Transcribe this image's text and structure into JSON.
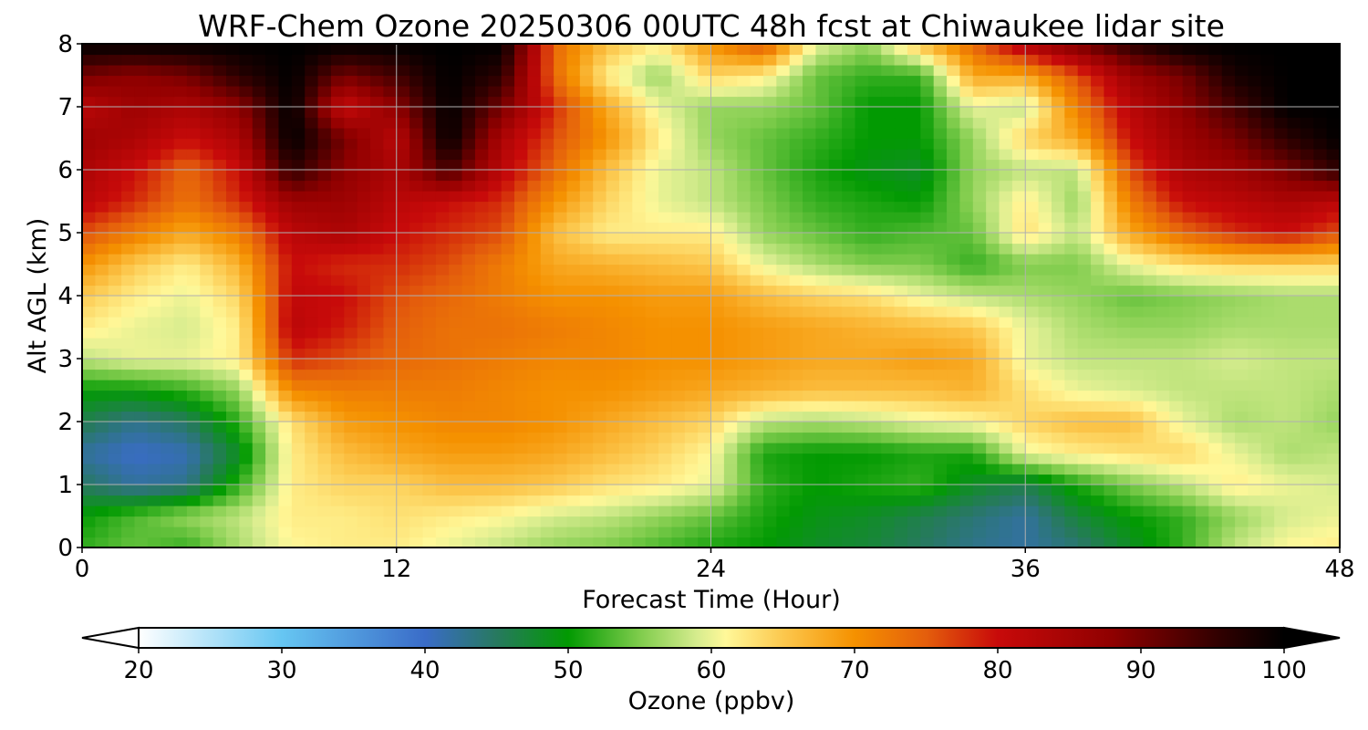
{
  "chart_data": {
    "type": "heatmap",
    "title": "WRF-Chem Ozone  20250306 00UTC 48h fcst at Chiwaukee lidar site",
    "xlabel": "Forecast Time (Hour)",
    "ylabel": "Alt AGL (km)",
    "xlim": [
      0,
      48
    ],
    "ylim": [
      0,
      8
    ],
    "x_ticks": [
      0,
      12,
      24,
      36,
      48
    ],
    "y_ticks": [
      0,
      1,
      2,
      3,
      4,
      5,
      6,
      7,
      8
    ],
    "grid": true,
    "x_hours": [
      0,
      2,
      4,
      6,
      8,
      10,
      12,
      14,
      16,
      18,
      20,
      22,
      24,
      26,
      28,
      30,
      32,
      34,
      36,
      38,
      40,
      42,
      44,
      46,
      48
    ],
    "y_km": [
      0,
      0.5,
      1,
      1.5,
      2,
      2.5,
      3,
      3.5,
      4,
      4.5,
      5,
      5.5,
      6,
      6.5,
      7,
      7.5,
      8
    ],
    "z_ppbv": [
      [
        52,
        54,
        52,
        57,
        61,
        62,
        62,
        60,
        58,
        56,
        55,
        53,
        51,
        50,
        48,
        47,
        45,
        43,
        42,
        44,
        48,
        52,
        58,
        61,
        62
      ],
      [
        50,
        53,
        56,
        58,
        62,
        62,
        63,
        62,
        61,
        59,
        58,
        56,
        54,
        51,
        49,
        48,
        46,
        44,
        42,
        47,
        50,
        52,
        56,
        59,
        60
      ],
      [
        45,
        42,
        43,
        52,
        62,
        64,
        64,
        66,
        66,
        65,
        63,
        62,
        60,
        52,
        50,
        51,
        52,
        48,
        46,
        51,
        55,
        58,
        62,
        60,
        59
      ],
      [
        42,
        40,
        41,
        48,
        62,
        66,
        68,
        69,
        69,
        68,
        66,
        64,
        61,
        51,
        50,
        50,
        51,
        51,
        60,
        62,
        63,
        64,
        60,
        57,
        58
      ],
      [
        46,
        43,
        45,
        52,
        63,
        69,
        70,
        71,
        71,
        70,
        68,
        66,
        64,
        58,
        57,
        58,
        60,
        61,
        64,
        66,
        66,
        60,
        57,
        58,
        56
      ],
      [
        50,
        50,
        52,
        56,
        71,
        72,
        72,
        72,
        71,
        70,
        70,
        69,
        68,
        67,
        66,
        66,
        66,
        67,
        63,
        60,
        59,
        58,
        58,
        58,
        57
      ],
      [
        58,
        60,
        60,
        62,
        78,
        76,
        74,
        73,
        72,
        71,
        71,
        70,
        70,
        69,
        68,
        68,
        69,
        68,
        60,
        58,
        58,
        58,
        59,
        58,
        58
      ],
      [
        62,
        60,
        59,
        62,
        82,
        79,
        75,
        73,
        73,
        72,
        71,
        70,
        70,
        69,
        68,
        67,
        66,
        65,
        60,
        57,
        56,
        56,
        57,
        57,
        57
      ],
      [
        65,
        62,
        60,
        64,
        81,
        80,
        76,
        74,
        72,
        70,
        70,
        69,
        69,
        66,
        64,
        63,
        60,
        58,
        57,
        56,
        54,
        55,
        56,
        57,
        57
      ],
      [
        70,
        65,
        62,
        67,
        80,
        78,
        78,
        76,
        72,
        68,
        67,
        66,
        65,
        60,
        57,
        55,
        55,
        52,
        55,
        55,
        60,
        63,
        64,
        64,
        64
      ],
      [
        76,
        72,
        68,
        72,
        82,
        84,
        80,
        78,
        76,
        66,
        62,
        62,
        62,
        56,
        54,
        52,
        53,
        54,
        63,
        58,
        68,
        74,
        78,
        80,
        76
      ],
      [
        82,
        78,
        73,
        78,
        86,
        86,
        82,
        80,
        78,
        70,
        64,
        60,
        58,
        55,
        52,
        51,
        50,
        56,
        62,
        56,
        72,
        80,
        82,
        84,
        82
      ],
      [
        84,
        80,
        74,
        80,
        96,
        88,
        84,
        94,
        82,
        74,
        66,
        60,
        58,
        54,
        51,
        49,
        48,
        56,
        58,
        58,
        76,
        84,
        86,
        90,
        96
      ],
      [
        86,
        84,
        80,
        84,
        100,
        90,
        82,
        100,
        84,
        76,
        70,
        62,
        56,
        54,
        52,
        50,
        50,
        56,
        64,
        68,
        80,
        86,
        90,
        96,
        100
      ],
      [
        82,
        86,
        84,
        88,
        100,
        80,
        88,
        100,
        90,
        78,
        68,
        60,
        56,
        56,
        54,
        50,
        50,
        60,
        58,
        72,
        82,
        88,
        94,
        100,
        100
      ],
      [
        90,
        88,
        90,
        96,
        100,
        90,
        94,
        100,
        96,
        74,
        62,
        56,
        64,
        62,
        54,
        52,
        52,
        68,
        68,
        76,
        86,
        90,
        98,
        100,
        100
      ],
      [
        100,
        100,
        100,
        100,
        100,
        100,
        100,
        100,
        100,
        74,
        66,
        62,
        70,
        76,
        60,
        56,
        66,
        74,
        84,
        90,
        96,
        100,
        100,
        100,
        100
      ]
    ],
    "colorbar": {
      "label": "Ozone  (ppbv)",
      "min": 20,
      "max": 100,
      "ticks": [
        20,
        30,
        40,
        50,
        60,
        70,
        80,
        90,
        100
      ],
      "extend": "both",
      "stops": [
        {
          "v": 20,
          "c": "#ffffff"
        },
        {
          "v": 30,
          "c": "#66c6f2"
        },
        {
          "v": 40,
          "c": "#3a6cc8"
        },
        {
          "v": 45,
          "c": "#27795f"
        },
        {
          "v": 50,
          "c": "#029a02"
        },
        {
          "v": 55,
          "c": "#7fcc4c"
        },
        {
          "v": 59,
          "c": "#d6ec8e"
        },
        {
          "v": 61,
          "c": "#fff899"
        },
        {
          "v": 65,
          "c": "#fcc84e"
        },
        {
          "v": 70,
          "c": "#f59100"
        },
        {
          "v": 75,
          "c": "#e45e0c"
        },
        {
          "v": 80,
          "c": "#c80a0a"
        },
        {
          "v": 88,
          "c": "#8f0000"
        },
        {
          "v": 95,
          "c": "#360000"
        },
        {
          "v": 100,
          "c": "#000000"
        }
      ]
    }
  }
}
